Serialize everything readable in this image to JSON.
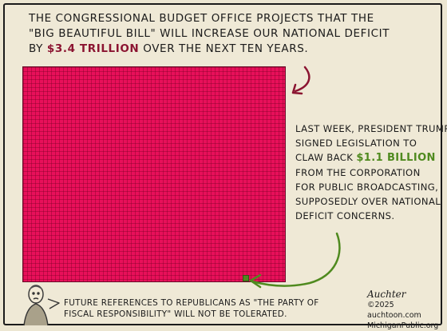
{
  "caption": {
    "line1": "The Congressional Budget Office projects that the",
    "line2": "\"Big Beautiful Bill\" will increase our national deficit",
    "line3_pre": "by",
    "line3_amount": "$3.4 trillion",
    "line3_post": "over the next ten years."
  },
  "side_text": {
    "line1": "Last week, President Trump",
    "line2": "signed legislation to",
    "line3_pre": "claw back",
    "line3_amount": "$1.1 billion",
    "line4": "from the Corporation",
    "line5": "for Public Broadcasting,",
    "line6": "supposedly over national",
    "line7": "deficit concerns."
  },
  "bottom_text": {
    "line1": "Future references to Republicans as \"the Party of",
    "line2": "fiscal responsibility\" will not be tolerated."
  },
  "credit": {
    "signature": "Auchter",
    "line1": "©2025",
    "line2": "auchtoon.com",
    "line3": "MichiganPublic.org"
  },
  "colors": {
    "deficit_grid": "#e8105a",
    "deficit_text": "#8b1431",
    "pbs_green": "#4f8a1f",
    "paper": "#ece6d2"
  }
}
